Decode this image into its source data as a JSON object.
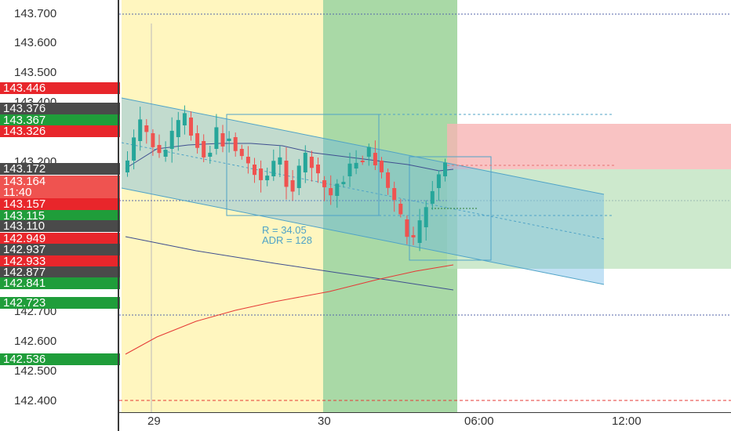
{
  "price_axis": {
    "ticks": [
      "143.700",
      "143.600",
      "143.500",
      "143.400",
      "143.200",
      "142.700",
      "142.600",
      "142.500",
      "142.400"
    ]
  },
  "price_tags": [
    {
      "label": "143.446",
      "color": "#e8262b"
    },
    {
      "label": "143.376",
      "color": "#4a4a4a"
    },
    {
      "label": "143.367",
      "color": "#1f9d3a"
    },
    {
      "label": "143.326",
      "color": "#e8262b"
    },
    {
      "label": "143.172",
      "color": "#4a4a4a"
    },
    {
      "label": "143.164",
      "color": "#ef5350"
    },
    {
      "label": "11:40",
      "color": "#ef5350"
    },
    {
      "label": "143.157",
      "color": "#e8262b"
    },
    {
      "label": "143.115",
      "color": "#1f9d3a"
    },
    {
      "label": "143.110",
      "color": "#4a4a4a"
    },
    {
      "label": "142.949",
      "color": "#e8262b"
    },
    {
      "label": "142.937",
      "color": "#4a4a4a"
    },
    {
      "label": "142.933",
      "color": "#e8262b"
    },
    {
      "label": "142.877",
      "color": "#4a4a4a"
    },
    {
      "label": "142.841",
      "color": "#1f9d3a"
    },
    {
      "label": "142.723",
      "color": "#1f9d3a"
    },
    {
      "label": "142.536",
      "color": "#1f9d3a"
    }
  ],
  "time_axis": {
    "labels": [
      "29",
      "30",
      "06:00",
      "12:00"
    ]
  },
  "annotation": {
    "range": "R = 34.05",
    "adr": "ADR = 128"
  },
  "colors": {
    "bull": "#26a69a",
    "bear": "#ef5350",
    "session_yellow": "#fff6bf",
    "session_green": "#a8d8a8",
    "channel": "#4fa3c7"
  }
}
